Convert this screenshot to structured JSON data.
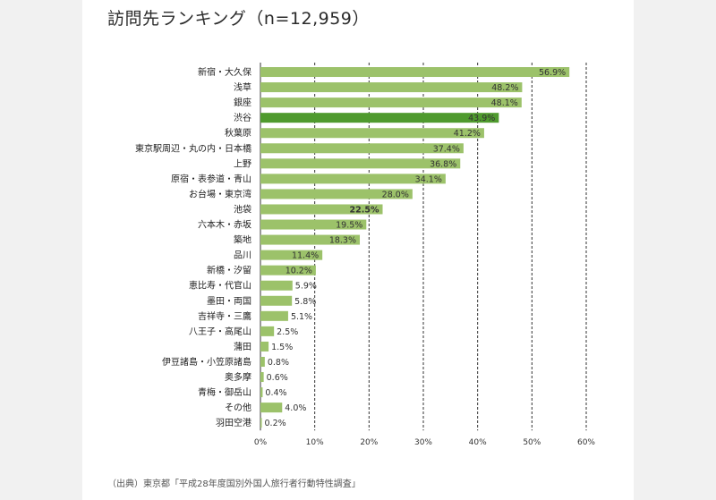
{
  "chart_data": {
    "type": "bar",
    "orientation": "horizontal",
    "title": "訪問先ランキング（n=12,959）",
    "xlabel": "",
    "ylabel": "",
    "xlim": [
      0,
      60
    ],
    "ticks": [
      {
        "value": 0,
        "label": "0%"
      },
      {
        "value": 10,
        "label": "10%"
      },
      {
        "value": 20,
        "label": "20%"
      },
      {
        "value": 30,
        "label": "30%"
      },
      {
        "value": 40,
        "label": "40%"
      },
      {
        "value": 50,
        "label": "50%"
      },
      {
        "value": 60,
        "label": "60%"
      }
    ],
    "grid": "vertical dashed",
    "colors": {
      "bar": "#9cc26a",
      "highlight": "#4f9a2e",
      "grid": "#333333"
    },
    "categories": [
      "新宿・大久保",
      "浅草",
      "銀座",
      "渋谷",
      "秋葉原",
      "東京駅周辺・丸の内・日本橋",
      "上野",
      "原宿・表参道・青山",
      "お台場・東京湾",
      "池袋",
      "六本木・赤坂",
      "築地",
      "品川",
      "新橋・汐留",
      "恵比寿・代官山",
      "墨田・両国",
      "吉祥寺・三鷹",
      "八王子・高尾山",
      "蒲田",
      "伊豆諸島・小笠原諸島",
      "奥多摩",
      "青梅・御岳山",
      "その他",
      "羽田空港"
    ],
    "values": [
      56.9,
      48.2,
      48.1,
      43.9,
      41.2,
      37.4,
      36.8,
      34.1,
      28.0,
      22.5,
      19.5,
      18.3,
      11.4,
      10.2,
      5.9,
      5.8,
      5.1,
      2.5,
      1.5,
      0.8,
      0.6,
      0.4,
      4.0,
      0.2
    ],
    "value_labels": [
      "56.9%",
      "48.2%",
      "48.1%",
      "43.9%",
      "41.2%",
      "37.4%",
      "36.8%",
      "34.1%",
      "28.0%",
      "22.5%",
      "19.5%",
      "18.3%",
      "11.4%",
      "10.2%",
      "5.9%",
      "5.8%",
      "5.1%",
      "2.5%",
      "1.5%",
      "0.8%",
      "0.6%",
      "0.4%",
      "4.0%",
      "0.2%"
    ],
    "highlight": [
      "渋谷"
    ],
    "bold_labels": [
      "池袋"
    ]
  },
  "source": "（出典）東京都「平成28年度国別外国人旅行者行動特性調査」"
}
